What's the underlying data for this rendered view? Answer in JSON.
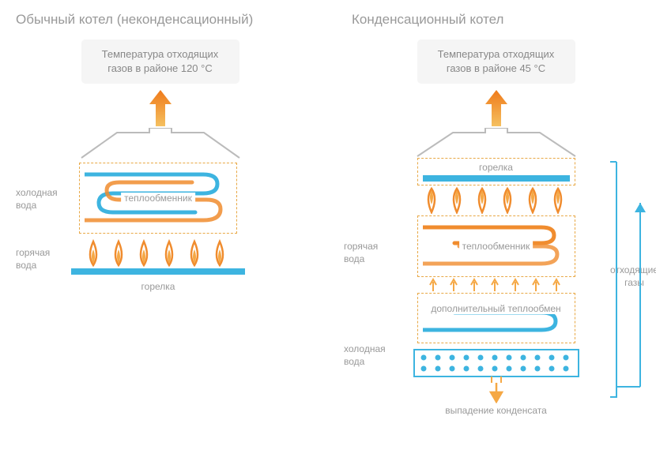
{
  "left": {
    "title": "Обычный котел (неконденсационный)",
    "temp_text": "Температура отходящих газов в районе 120 °С",
    "cold_water": "холодная вода",
    "hot_water": "горячая вода",
    "heat_exchanger": "теплообменник",
    "burner": "горелка"
  },
  "right": {
    "title": "Конденсационный котел",
    "temp_text": "Температура отходящих газов в районе 45 °С",
    "burner_top": "горелка",
    "hot_water": "горячая вода",
    "cold_water": "холодная вода",
    "heat_exchanger": "теплообменник",
    "additional_hex": "дополнительный теплообмен",
    "exhaust_gases": "отходящие газы",
    "condensate": "выпадение конденсата"
  },
  "colors": {
    "orange": "#f08c2e",
    "orange_light": "#f5a845",
    "blue": "#3db4e0",
    "blue_light": "#7cc8e5",
    "gray": "#999999",
    "box_bg": "#f5f5f5",
    "dash": "#e8a845"
  },
  "flames": {
    "count": 6
  }
}
